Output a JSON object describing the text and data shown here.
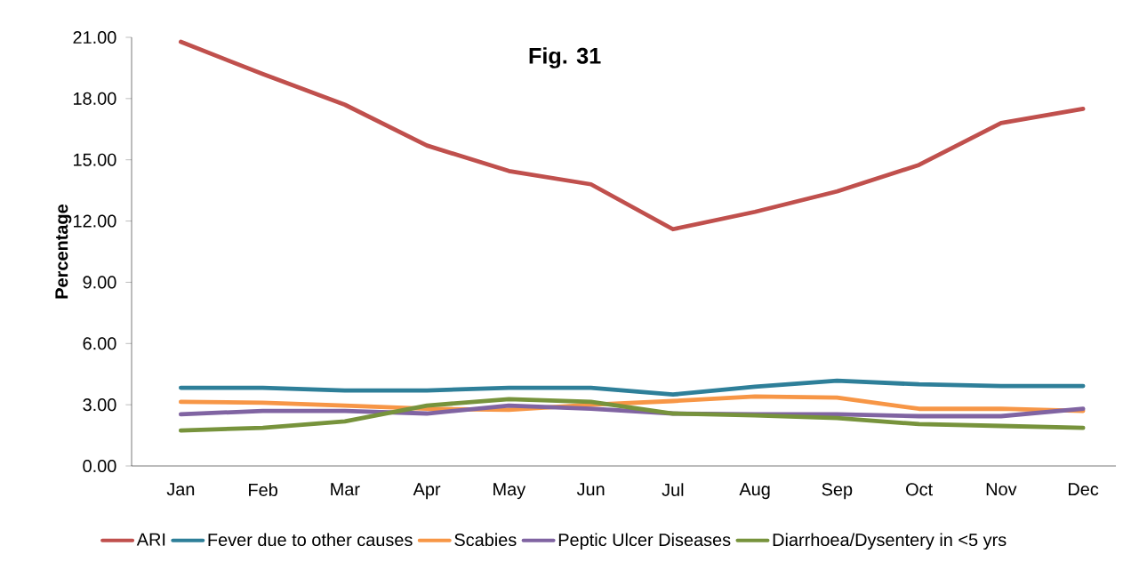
{
  "chart_data": {
    "type": "line",
    "title": "Fig. 31",
    "ylabel": "Percentage",
    "categories": [
      "Jan",
      "Feb",
      "Mar",
      "Apr",
      "May",
      "Jun",
      "Jul",
      "Aug",
      "Sep",
      "Oct",
      "Nov",
      "Dec"
    ],
    "series": [
      {
        "name": "ARI",
        "color": "#c0504d",
        "values": [
          20.78,
          19.2,
          17.7,
          15.7,
          14.45,
          13.8,
          11.6,
          12.45,
          13.45,
          14.75,
          16.8,
          17.5
        ]
      },
      {
        "name": "Fever due to other causes",
        "color": "#2e7f99",
        "values": [
          3.83,
          3.83,
          3.7,
          3.7,
          3.83,
          3.83,
          3.5,
          3.88,
          4.18,
          4.0,
          3.92,
          3.92
        ]
      },
      {
        "name": "Scabies",
        "color": "#f79646",
        "values": [
          3.14,
          3.1,
          2.96,
          2.8,
          2.75,
          3.0,
          3.18,
          3.4,
          3.35,
          2.8,
          2.8,
          2.7
        ]
      },
      {
        "name": "Peptic Ulcer Diseases",
        "color": "#8064a2",
        "values": [
          2.53,
          2.7,
          2.7,
          2.57,
          2.96,
          2.8,
          2.57,
          2.53,
          2.53,
          2.44,
          2.44,
          2.8
        ]
      },
      {
        "name": "Diarrhoea/Dysentery in <5 yrs",
        "color": "#77933c",
        "values": [
          1.74,
          1.87,
          2.18,
          2.96,
          3.27,
          3.14,
          2.57,
          2.48,
          2.35,
          2.05,
          1.96,
          1.87
        ]
      }
    ],
    "ylim": [
      0,
      21
    ],
    "yticks": [
      {
        "value": 0,
        "label": "0.00"
      },
      {
        "value": 3,
        "label": "3.00"
      },
      {
        "value": 6,
        "label": "6.00"
      },
      {
        "value": 9,
        "label": "9.00"
      },
      {
        "value": 12,
        "label": "12.00"
      },
      {
        "value": 15,
        "label": "15.00"
      },
      {
        "value": 18,
        "label": "18.00"
      },
      {
        "value": 21,
        "label": "21.00"
      }
    ],
    "grid": false,
    "legend": "bottom",
    "marker": "none",
    "line_style": "solid"
  }
}
